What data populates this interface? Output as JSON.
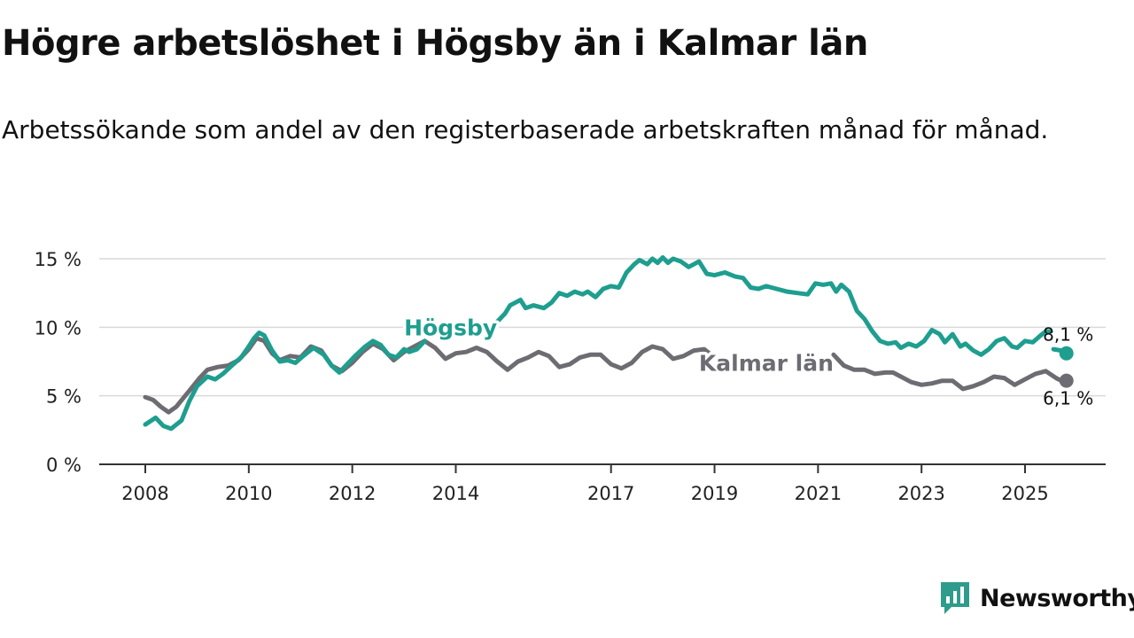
{
  "chart_data": {
    "type": "line",
    "title": "Högre arbetslöshet i Högsby än i Kalmar län",
    "subtitle": "Arbetssökande som andel av den registerbaserade arbetskraften månad för månad.",
    "xlabel": "",
    "ylabel": "",
    "xlim": [
      2008,
      2025.9
    ],
    "ylim": [
      0,
      15
    ],
    "y_ticks": [
      0,
      5,
      10,
      15
    ],
    "y_tick_labels": [
      "0 %",
      "5 %",
      "10 %",
      "15 %"
    ],
    "x_ticks": [
      2008,
      2010,
      2012,
      2014,
      2017,
      2019,
      2021,
      2023,
      2025
    ],
    "x_tick_labels": [
      "2008",
      "2010",
      "2012",
      "2014",
      "2017",
      "2019",
      "2021",
      "2023",
      "2025"
    ],
    "grid": true,
    "series": [
      {
        "name": "Högsby",
        "color": "#1e9e8f",
        "end_label": "8,1 %",
        "points": [
          [
            2008.0,
            2.9
          ],
          [
            2008.2,
            3.4
          ],
          [
            2008.35,
            2.8
          ],
          [
            2008.5,
            2.6
          ],
          [
            2008.7,
            3.2
          ],
          [
            2008.85,
            4.6
          ],
          [
            2009.0,
            5.7
          ],
          [
            2009.2,
            6.4
          ],
          [
            2009.35,
            6.2
          ],
          [
            2009.5,
            6.6
          ],
          [
            2009.7,
            7.3
          ],
          [
            2009.85,
            7.8
          ],
          [
            2010.0,
            8.6
          ],
          [
            2010.1,
            9.2
          ],
          [
            2010.2,
            9.6
          ],
          [
            2010.3,
            9.4
          ],
          [
            2010.45,
            8.3
          ],
          [
            2010.6,
            7.5
          ],
          [
            2010.75,
            7.6
          ],
          [
            2010.9,
            7.4
          ],
          [
            2011.05,
            7.9
          ],
          [
            2011.25,
            8.5
          ],
          [
            2011.45,
            8.0
          ],
          [
            2011.6,
            7.2
          ],
          [
            2011.75,
            6.7
          ],
          [
            2011.9,
            7.3
          ],
          [
            2012.05,
            7.9
          ],
          [
            2012.25,
            8.6
          ],
          [
            2012.4,
            9.0
          ],
          [
            2012.55,
            8.7
          ],
          [
            2012.7,
            8.0
          ],
          [
            2012.85,
            7.8
          ],
          [
            2013.0,
            8.4
          ],
          [
            2013.1,
            8.2
          ],
          [
            2013.25,
            8.4
          ],
          [
            2013.4,
            9.0
          ]
        ],
        "points_2": [
          [
            2014.8,
            10.4
          ],
          [
            2014.95,
            11.0
          ],
          [
            2015.05,
            11.6
          ],
          [
            2015.25,
            12.0
          ],
          [
            2015.35,
            11.4
          ],
          [
            2015.5,
            11.6
          ],
          [
            2015.7,
            11.4
          ],
          [
            2015.85,
            11.8
          ],
          [
            2016.0,
            12.5
          ],
          [
            2016.15,
            12.3
          ],
          [
            2016.3,
            12.6
          ],
          [
            2016.45,
            12.4
          ],
          [
            2016.55,
            12.6
          ],
          [
            2016.7,
            12.2
          ],
          [
            2016.85,
            12.8
          ],
          [
            2017.0,
            13.0
          ],
          [
            2017.15,
            12.9
          ],
          [
            2017.3,
            14.0
          ],
          [
            2017.45,
            14.6
          ],
          [
            2017.55,
            14.9
          ],
          [
            2017.7,
            14.6
          ],
          [
            2017.8,
            15.0
          ],
          [
            2017.9,
            14.7
          ],
          [
            2018.0,
            15.1
          ],
          [
            2018.1,
            14.7
          ],
          [
            2018.2,
            15.0
          ],
          [
            2018.35,
            14.8
          ],
          [
            2018.5,
            14.4
          ],
          [
            2018.6,
            14.6
          ],
          [
            2018.7,
            14.8
          ],
          [
            2018.85,
            13.9
          ],
          [
            2019.0,
            13.8
          ],
          [
            2019.2,
            14.0
          ],
          [
            2019.4,
            13.7
          ],
          [
            2019.55,
            13.6
          ],
          [
            2019.7,
            12.9
          ],
          [
            2019.85,
            12.8
          ],
          [
            2020.0,
            13.0
          ],
          [
            2020.2,
            12.8
          ],
          [
            2020.4,
            12.6
          ],
          [
            2020.6,
            12.5
          ],
          [
            2020.8,
            12.4
          ],
          [
            2020.95,
            13.2
          ],
          [
            2021.1,
            13.1
          ],
          [
            2021.25,
            13.2
          ],
          [
            2021.35,
            12.6
          ],
          [
            2021.45,
            13.1
          ],
          [
            2021.6,
            12.6
          ],
          [
            2021.75,
            11.2
          ],
          [
            2021.9,
            10.6
          ],
          [
            2022.05,
            9.7
          ],
          [
            2022.2,
            9.0
          ],
          [
            2022.35,
            8.8
          ],
          [
            2022.5,
            8.9
          ],
          [
            2022.6,
            8.5
          ],
          [
            2022.75,
            8.8
          ],
          [
            2022.9,
            8.6
          ],
          [
            2023.05,
            9.0
          ],
          [
            2023.2,
            9.8
          ],
          [
            2023.35,
            9.5
          ],
          [
            2023.45,
            8.9
          ],
          [
            2023.6,
            9.5
          ],
          [
            2023.75,
            8.6
          ],
          [
            2023.85,
            8.8
          ],
          [
            2024.0,
            8.3
          ],
          [
            2024.15,
            8.0
          ],
          [
            2024.3,
            8.4
          ],
          [
            2024.45,
            9.0
          ],
          [
            2024.6,
            9.2
          ],
          [
            2024.75,
            8.6
          ],
          [
            2024.85,
            8.5
          ],
          [
            2025.0,
            9.0
          ],
          [
            2025.15,
            8.9
          ],
          [
            2025.3,
            9.4
          ],
          [
            2025.4,
            9.7
          ],
          [
            2025.5,
            9.7
          ]
        ],
        "points_3": [
          [
            2025.55,
            8.4
          ],
          [
            2025.7,
            8.3
          ],
          [
            2025.8,
            8.1
          ]
        ],
        "label_at": [
          2013.9,
          10.0
        ]
      },
      {
        "name": "Kalmar län",
        "color": "#6d6c72",
        "end_label": "6,1 %",
        "points": [
          [
            2008.0,
            4.9
          ],
          [
            2008.15,
            4.7
          ],
          [
            2008.3,
            4.2
          ],
          [
            2008.45,
            3.8
          ],
          [
            2008.6,
            4.2
          ],
          [
            2008.75,
            4.9
          ],
          [
            2008.9,
            5.6
          ],
          [
            2009.05,
            6.3
          ],
          [
            2009.2,
            6.9
          ],
          [
            2009.4,
            7.1
          ],
          [
            2009.6,
            7.2
          ],
          [
            2009.8,
            7.6
          ],
          [
            2010.0,
            8.4
          ],
          [
            2010.15,
            9.2
          ],
          [
            2010.3,
            9.0
          ],
          [
            2010.45,
            8.1
          ],
          [
            2010.6,
            7.6
          ],
          [
            2010.8,
            7.9
          ],
          [
            2011.0,
            7.8
          ],
          [
            2011.2,
            8.6
          ],
          [
            2011.4,
            8.3
          ],
          [
            2011.6,
            7.2
          ],
          [
            2011.8,
            6.8
          ],
          [
            2012.0,
            7.4
          ],
          [
            2012.2,
            8.2
          ],
          [
            2012.4,
            8.8
          ],
          [
            2012.6,
            8.4
          ],
          [
            2012.8,
            7.6
          ],
          [
            2013.0,
            8.2
          ],
          [
            2013.2,
            8.6
          ],
          [
            2013.4,
            9.0
          ],
          [
            2013.6,
            8.5
          ],
          [
            2013.8,
            7.7
          ],
          [
            2014.0,
            8.1
          ],
          [
            2014.2,
            8.2
          ],
          [
            2014.4,
            8.5
          ],
          [
            2014.6,
            8.2
          ],
          [
            2014.8,
            7.5
          ],
          [
            2015.0,
            6.9
          ],
          [
            2015.2,
            7.5
          ],
          [
            2015.4,
            7.8
          ],
          [
            2015.6,
            8.2
          ],
          [
            2015.8,
            7.9
          ],
          [
            2016.0,
            7.1
          ],
          [
            2016.2,
            7.3
          ],
          [
            2016.4,
            7.8
          ],
          [
            2016.6,
            8.0
          ],
          [
            2016.8,
            8.0
          ],
          [
            2017.0,
            7.3
          ],
          [
            2017.2,
            7.0
          ],
          [
            2017.4,
            7.4
          ],
          [
            2017.6,
            8.2
          ],
          [
            2017.8,
            8.6
          ],
          [
            2018.0,
            8.4
          ],
          [
            2018.2,
            7.7
          ],
          [
            2018.4,
            7.9
          ],
          [
            2018.6,
            8.3
          ],
          [
            2018.8,
            8.4
          ],
          [
            2019.0,
            7.8
          ]
        ],
        "points_2": [
          [
            2021.3,
            8.0
          ],
          [
            2021.5,
            7.2
          ],
          [
            2021.7,
            6.9
          ],
          [
            2021.9,
            6.9
          ],
          [
            2022.1,
            6.6
          ],
          [
            2022.3,
            6.7
          ],
          [
            2022.45,
            6.7
          ],
          [
            2022.6,
            6.4
          ],
          [
            2022.8,
            6.0
          ],
          [
            2023.0,
            5.8
          ],
          [
            2023.2,
            5.9
          ],
          [
            2023.4,
            6.1
          ],
          [
            2023.6,
            6.1
          ],
          [
            2023.8,
            5.5
          ],
          [
            2024.0,
            5.7
          ],
          [
            2024.2,
            6.0
          ],
          [
            2024.4,
            6.4
          ],
          [
            2024.6,
            6.3
          ],
          [
            2024.8,
            5.8
          ],
          [
            2025.0,
            6.2
          ],
          [
            2025.2,
            6.6
          ],
          [
            2025.4,
            6.8
          ],
          [
            2025.6,
            6.3
          ],
          [
            2025.7,
            6.1
          ],
          [
            2025.8,
            6.1
          ]
        ],
        "label_at": [
          2020.0,
          7.4
        ]
      }
    ]
  },
  "brand": {
    "name": "Newsworthy",
    "color": "#2f9b8c"
  }
}
